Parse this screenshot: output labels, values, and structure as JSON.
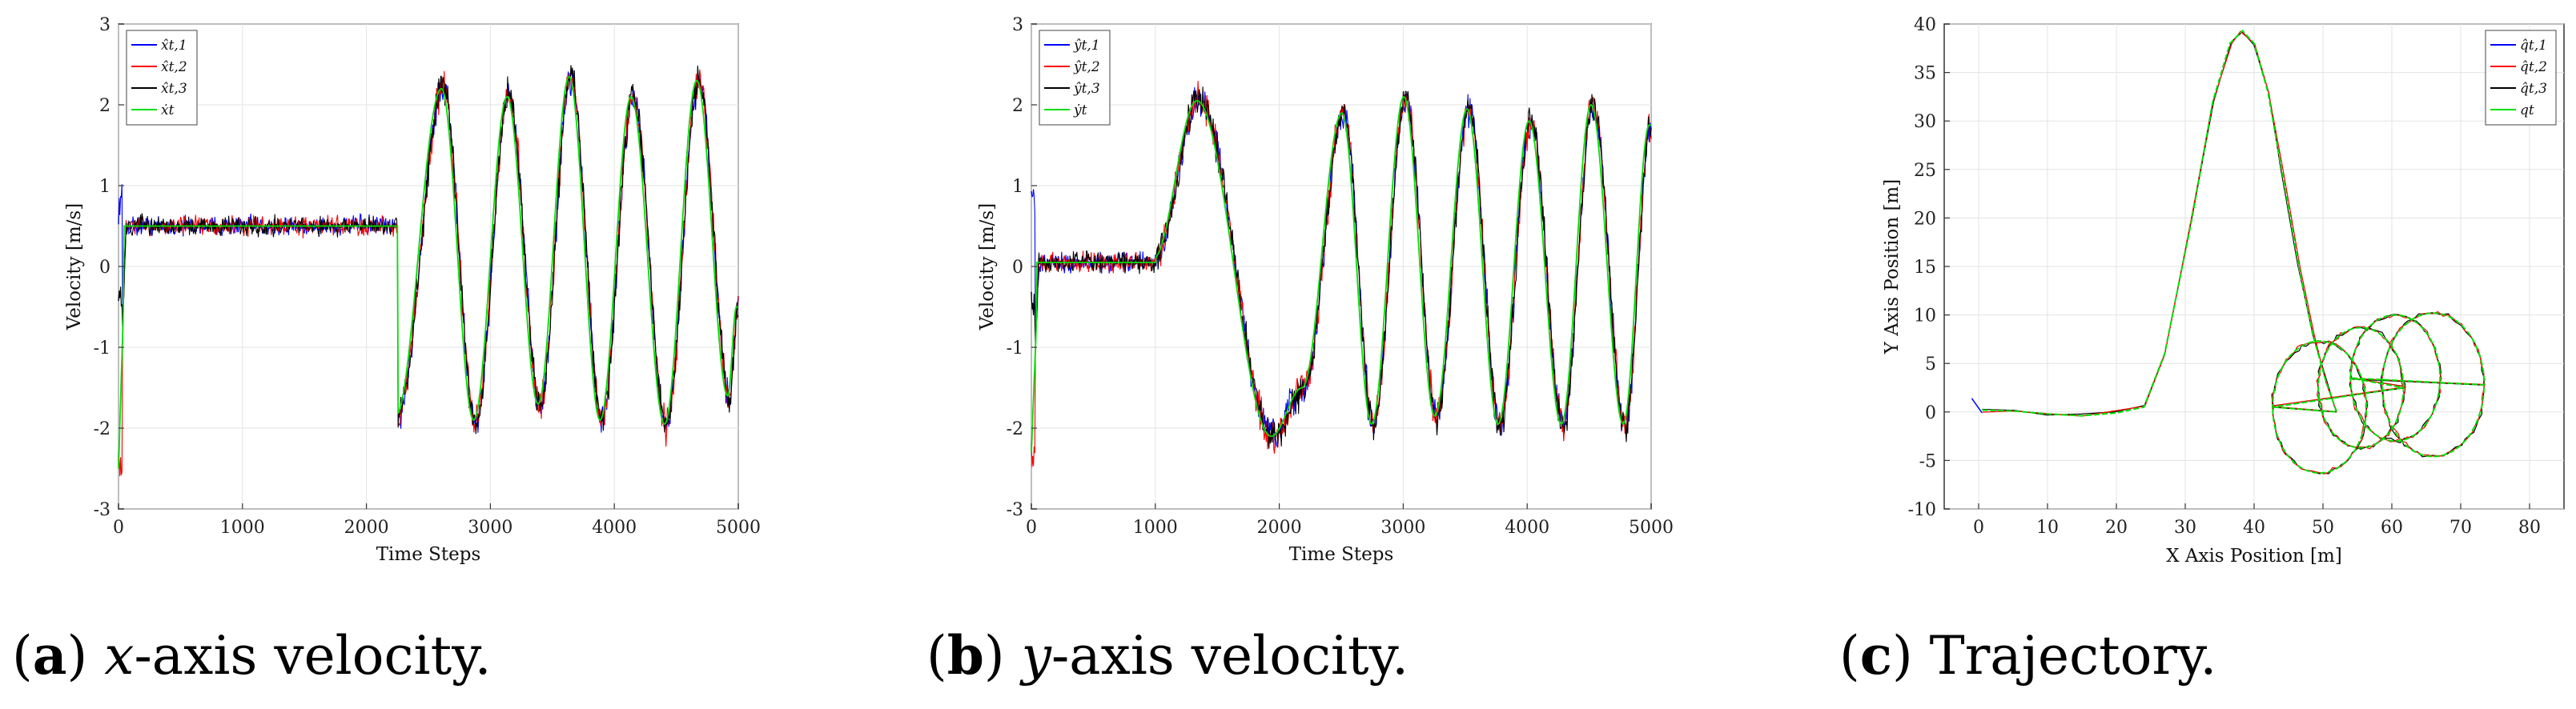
{
  "chart_data": [
    {
      "type": "line",
      "id": "a",
      "caption_letter": "a",
      "caption_pre": "",
      "caption_italic": "x",
      "caption_post": "-axis velocity.",
      "xlabel": "Time Steps",
      "ylabel": "Velocity [m/s]",
      "xlim": [
        0,
        5000
      ],
      "ylim": [
        -3,
        3
      ],
      "xticks": [
        0,
        1000,
        2000,
        3000,
        4000,
        5000
      ],
      "yticks": [
        -3,
        -2,
        -1,
        0,
        1,
        2,
        3
      ],
      "grid": true,
      "legend_position": "top-left",
      "profile": {
        "flat_until": 2250,
        "flat_level": 0.5,
        "wave_peaks": [
          [
            2250,
            -1.85
          ],
          [
            2620,
            2.2
          ],
          [
            2880,
            -1.9
          ],
          [
            3150,
            2.1
          ],
          [
            3400,
            -1.7
          ],
          [
            3650,
            2.35
          ],
          [
            3900,
            -1.9
          ],
          [
            4150,
            2.1
          ],
          [
            4420,
            -1.95
          ],
          [
            4680,
            2.3
          ],
          [
            4930,
            -1.6
          ],
          [
            5000,
            -0.5
          ]
        ],
        "start_value": -2.5
      },
      "series": [
        {
          "name": "x̂_{t,1}",
          "label": "x̂t,1",
          "color": "#0000ff"
        },
        {
          "name": "x̂_{t,2}",
          "label": "x̂t,2",
          "color": "#ff0000"
        },
        {
          "name": "x̂_{t,3}",
          "label": "x̂t,3",
          "color": "#000000"
        },
        {
          "name": "ẋ_t",
          "label": "ẋt",
          "color": "#00e000"
        }
      ]
    },
    {
      "type": "line",
      "id": "b",
      "caption_letter": "b",
      "caption_pre": "",
      "caption_italic": "y",
      "caption_post": "-axis velocity.",
      "xlabel": "Time Steps",
      "ylabel": "Velocity [m/s]",
      "xlim": [
        0,
        5000
      ],
      "ylim": [
        -3,
        3
      ],
      "xticks": [
        0,
        1000,
        2000,
        3000,
        4000,
        5000
      ],
      "yticks": [
        -3,
        -2,
        -1,
        0,
        1,
        2,
        3
      ],
      "grid": true,
      "legend_position": "top-left",
      "profile": {
        "flat_until": 1000,
        "flat_level": 0.05,
        "wave_peaks": [
          [
            1000,
            0.1
          ],
          [
            1350,
            2.05
          ],
          [
            1950,
            -2.1
          ],
          [
            2200,
            -1.5
          ],
          [
            2520,
            1.9
          ],
          [
            2760,
            -1.95
          ],
          [
            3020,
            2.1
          ],
          [
            3270,
            -1.85
          ],
          [
            3530,
            1.95
          ],
          [
            3780,
            -1.95
          ],
          [
            4030,
            1.8
          ],
          [
            4290,
            -1.95
          ],
          [
            4530,
            2.0
          ],
          [
            4790,
            -1.95
          ],
          [
            5000,
            1.75
          ]
        ],
        "start_value": -2.3
      },
      "series": [
        {
          "name": "ŷ_{t,1}",
          "label": "ŷt,1",
          "color": "#0000ff"
        },
        {
          "name": "ŷ_{t,2}",
          "label": "ŷt,2",
          "color": "#ff0000"
        },
        {
          "name": "ŷ_{t,3}",
          "label": "ŷt,3",
          "color": "#000000"
        },
        {
          "name": "ẏ_t",
          "label": "ẏt",
          "color": "#00e000"
        }
      ]
    },
    {
      "type": "line",
      "id": "c",
      "caption_letter": "c",
      "caption_pre": "Trajectory.",
      "caption_italic": "",
      "caption_post": "",
      "xlabel": "X Axis Position [m]",
      "ylabel": "Y Axis Position [m]",
      "xlim": [
        -5,
        85
      ],
      "ylim": [
        -10,
        40
      ],
      "xticks": [
        0,
        10,
        20,
        30,
        40,
        50,
        60,
        70,
        80
      ],
      "yticks": [
        -10,
        -5,
        0,
        5,
        10,
        15,
        20,
        25,
        30,
        35,
        40
      ],
      "grid": true,
      "legend_position": "top-right",
      "path": [
        [
          0.5,
          0.2
        ],
        [
          5,
          0.1
        ],
        [
          10,
          -0.2
        ],
        [
          15,
          -0.4
        ],
        [
          20,
          -0.1
        ],
        [
          24,
          0.5
        ],
        [
          27,
          6
        ],
        [
          31,
          20
        ],
        [
          34,
          32
        ],
        [
          36.5,
          38
        ],
        [
          38.3,
          39.3
        ],
        [
          40,
          38
        ],
        [
          42,
          33
        ],
        [
          44,
          25
        ],
        [
          46.5,
          15
        ],
        [
          48.5,
          8
        ],
        [
          50.5,
          3
        ],
        [
          52,
          0
        ]
      ],
      "circles": [
        {
          "cx": 49.5,
          "cy": 0.5,
          "r": 6.8
        },
        {
          "cx": 55.5,
          "cy": 2.5,
          "r": 6.2
        },
        {
          "cx": 60.5,
          "cy": 3.5,
          "r": 6.5
        },
        {
          "cx": 66,
          "cy": 2.8,
          "r": 7.4
        }
      ],
      "series": [
        {
          "name": "q̂_{t,1}",
          "label": "q̂t,1",
          "color": "#0000ff"
        },
        {
          "name": "q̂_{t,2}",
          "label": "q̂t,2",
          "color": "#ff0000"
        },
        {
          "name": "q̂_{t,3}",
          "label": "q̂t,3",
          "color": "#000000"
        },
        {
          "name": "q_t",
          "label": "qt",
          "color": "#00e000"
        }
      ]
    }
  ]
}
